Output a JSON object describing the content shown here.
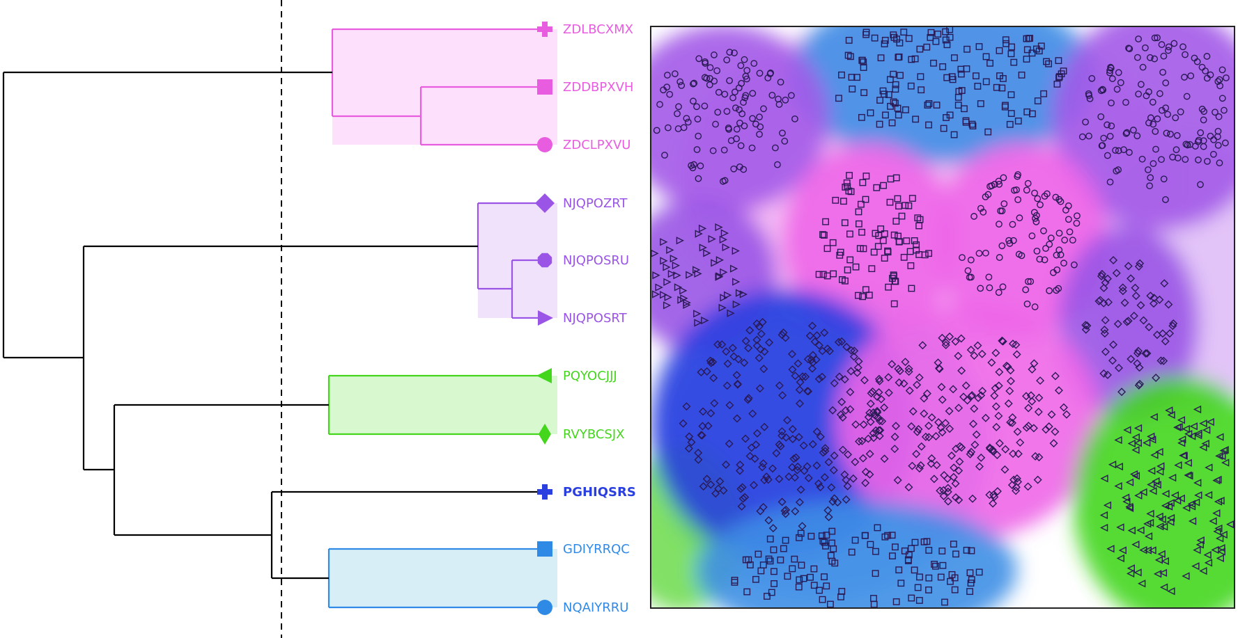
{
  "figure": {
    "leaves": [
      {
        "id": "ZDLBCXMX",
        "label": "ZDLBCXMX",
        "marker": "plus",
        "color": "#e85ce0"
      },
      {
        "id": "ZDDBPXVH",
        "label": "ZDDBPXVH",
        "marker": "square",
        "color": "#e85ce0"
      },
      {
        "id": "ZDCLPXVU",
        "label": "ZDCLPXVU",
        "marker": "circle",
        "color": "#e85ce0"
      },
      {
        "id": "NJQPOZRT",
        "label": "NJQPOZRT",
        "marker": "diamond",
        "color": "#9a55e6"
      },
      {
        "id": "NJQPOSRU",
        "label": "NJQPOSRU",
        "marker": "octagon",
        "color": "#9a55e6"
      },
      {
        "id": "NJQPOSRT",
        "label": "NJQPOSRT",
        "marker": "triangle-right",
        "color": "#9a55e6"
      },
      {
        "id": "PQYOCJJJ",
        "label": "PQYOCJJJ",
        "marker": "triangle-left",
        "color": "#44d61c"
      },
      {
        "id": "RVYBCSJX",
        "label": "RVYBCSJX",
        "marker": "thin-diamond",
        "color": "#44d61c"
      },
      {
        "id": "PGHIQSRS",
        "label": "PGHIQSRS",
        "marker": "plus",
        "color": "#2a3fe0"
      },
      {
        "id": "GDIYRRQC",
        "label": "GDIYRRQC",
        "marker": "square",
        "color": "#2f8ae6"
      },
      {
        "id": "NQAIYRRU",
        "label": "NQAIYRRU",
        "marker": "circle",
        "color": "#2f8ae6"
      }
    ],
    "cluster_fills": {
      "pink": "#fde0fb",
      "purple": "#f0e2fb",
      "green": "#d8f8cf",
      "blue": "#d8eef7"
    },
    "map_regions": [
      {
        "id": "top-blue-squares",
        "color": "#3f8fe6",
        "marker": "square"
      },
      {
        "id": "top-left-purple-circles",
        "color": "#a35ae8",
        "marker": "circle"
      },
      {
        "id": "top-right-purple-circles",
        "color": "#a35ae8",
        "marker": "circle"
      },
      {
        "id": "center-pink-squares",
        "color": "#ee66e8",
        "marker": "square"
      },
      {
        "id": "center-pink-circles",
        "color": "#ee66e8",
        "marker": "circle"
      },
      {
        "id": "left-purple-triangles",
        "color": "#9a55e6",
        "marker": "triangle-right"
      },
      {
        "id": "right-purple-diamonds",
        "color": "#9a55e6",
        "marker": "diamond"
      },
      {
        "id": "dark-blue-diamonds",
        "color": "#2a3fe0",
        "marker": "diamond"
      },
      {
        "id": "center-pink-diamonds",
        "color": "#ee66e8",
        "marker": "diamond"
      },
      {
        "id": "bottom-blue-squares",
        "color": "#3f8fe6",
        "marker": "square"
      },
      {
        "id": "bottom-right-green-triangles",
        "color": "#44d61c",
        "marker": "triangle-left"
      }
    ]
  }
}
